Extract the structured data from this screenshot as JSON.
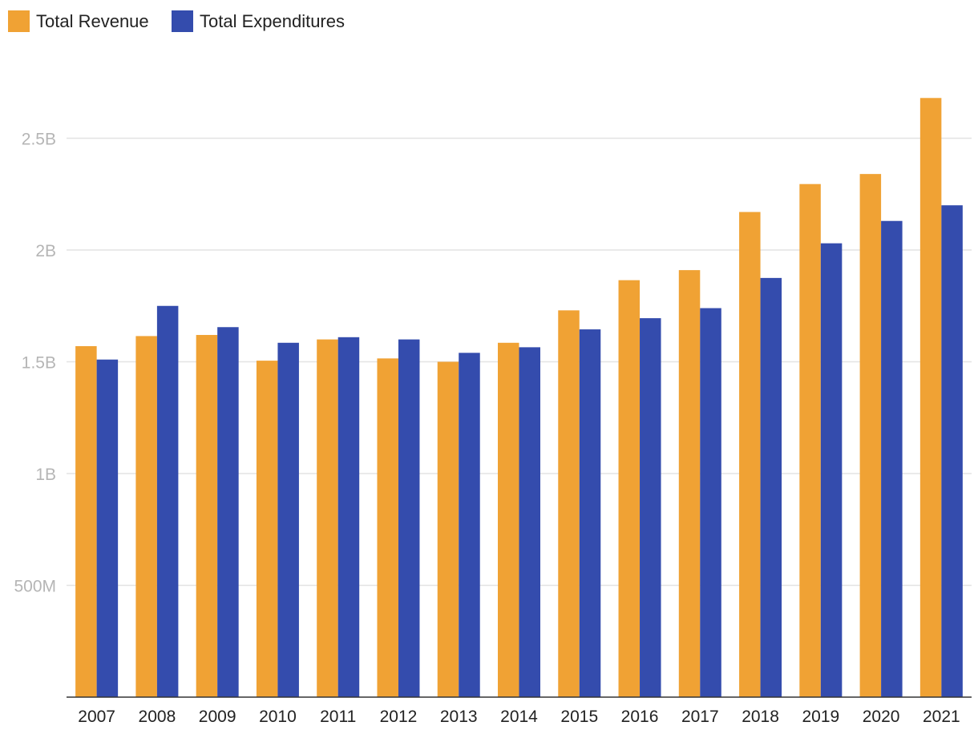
{
  "chart_data": {
    "type": "bar",
    "title": "",
    "xlabel": "",
    "ylabel": "",
    "categories": [
      "2007",
      "2008",
      "2009",
      "2010",
      "2011",
      "2012",
      "2013",
      "2014",
      "2015",
      "2016",
      "2017",
      "2018",
      "2019",
      "2020",
      "2021"
    ],
    "series": [
      {
        "name": "Total Revenue",
        "color": "#F0A234",
        "values": [
          1570000000,
          1615000000,
          1620000000,
          1505000000,
          1600000000,
          1515000000,
          1500000000,
          1585000000,
          1730000000,
          1865000000,
          1910000000,
          2170000000,
          2295000000,
          2340000000,
          2680000000
        ]
      },
      {
        "name": "Total Expenditures",
        "color": "#344CAD",
        "values": [
          1510000000,
          1750000000,
          1655000000,
          1585000000,
          1610000000,
          1600000000,
          1540000000,
          1565000000,
          1645000000,
          1695000000,
          1740000000,
          1875000000,
          2030000000,
          2130000000,
          2200000000
        ]
      }
    ],
    "ylim": [
      0,
      3100000000
    ],
    "yticks": [
      {
        "value": 500000000,
        "label": "500M"
      },
      {
        "value": 1000000000,
        "label": "1B"
      },
      {
        "value": 1500000000,
        "label": "1.5B"
      },
      {
        "value": 2000000000,
        "label": "2B"
      },
      {
        "value": 2500000000,
        "label": "2.5B"
      }
    ],
    "grid": true,
    "legend_position": "top-left"
  }
}
